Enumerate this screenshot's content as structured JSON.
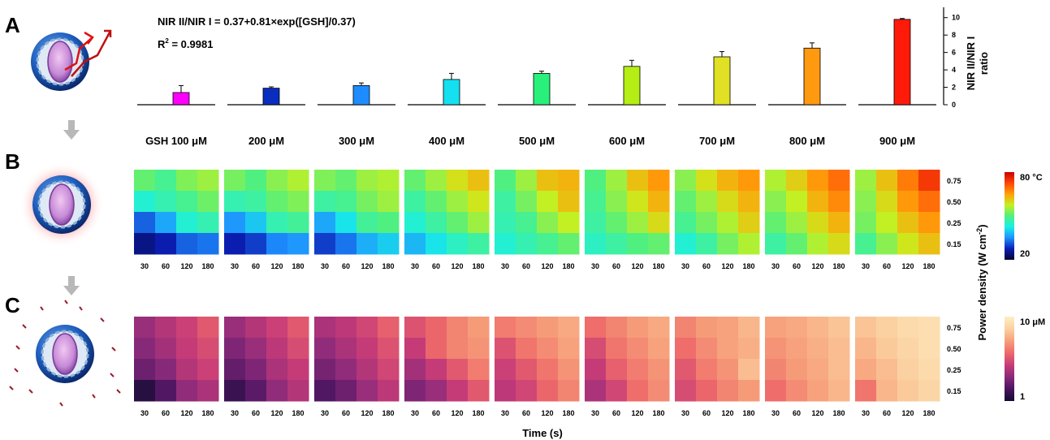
{
  "panels": {
    "a": "A",
    "b": "B",
    "c": "C"
  },
  "chart_data": [
    {
      "type": "bar",
      "panel": "A",
      "equation": "NIR II/NIR I = 0.37+0.81×exp([GSH]/0.37)",
      "r2_prefix": "R",
      "r2_sup": "2",
      "r2_rest": " = 0.9981",
      "ylabel_line1": "NIR II/NIR I",
      "ylabel_line2": "ratio",
      "ylim": [
        0,
        11
      ],
      "yticks": [
        0,
        2,
        4,
        6,
        8,
        10
      ],
      "categories": [
        "GSH 100 μM",
        "200 μM",
        "300 μM",
        "400 μM",
        "500 μM",
        "600 μM",
        "700 μM",
        "800 μM",
        "900 μM"
      ],
      "values": [
        1.4,
        1.9,
        2.2,
        2.9,
        3.6,
        4.4,
        5.5,
        6.5,
        9.8
      ],
      "errors": [
        0.8,
        0.15,
        0.3,
        0.7,
        0.25,
        0.7,
        0.6,
        0.6,
        0.1
      ],
      "colors": [
        "#ff00ff",
        "#0a2dbf",
        "#1e8cff",
        "#14e0f0",
        "#28f07a",
        "#b4ee14",
        "#e0e024",
        "#ff9a10",
        "#ff1a0a"
      ]
    },
    {
      "type": "heatmap",
      "panel": "B",
      "xlabel": "Time (s)",
      "x": [
        "30",
        "60",
        "120",
        "180"
      ],
      "ylabel": "Power density (W cm",
      "ylabel_sup": "-2",
      "ylabel_end": ")",
      "y": [
        "0.75",
        "0.50",
        "0.25",
        "0.15"
      ],
      "colorbar": {
        "max_label": "80 °C",
        "min_label": "20",
        "colors": [
          "#070432",
          "#0a1eb4",
          "#1e90ff",
          "#18f0e6",
          "#50f080",
          "#c8f01e",
          "#ffa00a",
          "#ff4608",
          "#c80000"
        ]
      },
      "series": [
        {
          "name": "GSH 100 μM",
          "values": [
            [
              0.52,
              0.48,
              0.55,
              0.58
            ],
            [
              0.4,
              0.44,
              0.48,
              0.53
            ],
            [
              0.2,
              0.28,
              0.4,
              0.44
            ],
            [
              0.08,
              0.12,
              0.2,
              0.22
            ]
          ]
        },
        {
          "name": "200 μM",
          "values": [
            [
              0.54,
              0.5,
              0.56,
              0.6
            ],
            [
              0.44,
              0.46,
              0.52,
              0.55
            ],
            [
              0.26,
              0.32,
              0.44,
              0.47
            ],
            [
              0.12,
              0.16,
              0.24,
              0.26
            ]
          ]
        },
        {
          "name": "300 μM",
          "values": [
            [
              0.55,
              0.52,
              0.58,
              0.6
            ],
            [
              0.46,
              0.48,
              0.54,
              0.58
            ],
            [
              0.28,
              0.36,
              0.47,
              0.5
            ],
            [
              0.16,
              0.22,
              0.29,
              0.33
            ]
          ]
        },
        {
          "name": "400 μM",
          "values": [
            [
              0.52,
              0.58,
              0.65,
              0.7
            ],
            [
              0.46,
              0.52,
              0.58,
              0.64
            ],
            [
              0.4,
              0.46,
              0.52,
              0.58
            ],
            [
              0.3,
              0.36,
              0.42,
              0.46
            ]
          ]
        },
        {
          "name": "500 μM",
          "values": [
            [
              0.5,
              0.58,
              0.7,
              0.72
            ],
            [
              0.46,
              0.54,
              0.62,
              0.7
            ],
            [
              0.44,
              0.48,
              0.56,
              0.62
            ],
            [
              0.4,
              0.44,
              0.48,
              0.52
            ]
          ]
        },
        {
          "name": "600 μM",
          "values": [
            [
              0.5,
              0.58,
              0.7,
              0.76
            ],
            [
              0.48,
              0.56,
              0.64,
              0.72
            ],
            [
              0.46,
              0.52,
              0.58,
              0.66
            ],
            [
              0.42,
              0.46,
              0.5,
              0.52
            ]
          ]
        },
        {
          "name": "700 μM",
          "values": [
            [
              0.56,
              0.65,
              0.72,
              0.76
            ],
            [
              0.52,
              0.58,
              0.66,
              0.72
            ],
            [
              0.48,
              0.54,
              0.6,
              0.68
            ],
            [
              0.4,
              0.46,
              0.54,
              0.6
            ]
          ]
        },
        {
          "name": "800 μM",
          "values": [
            [
              0.6,
              0.68,
              0.76,
              0.82
            ],
            [
              0.56,
              0.62,
              0.72,
              0.78
            ],
            [
              0.52,
              0.58,
              0.66,
              0.72
            ],
            [
              0.46,
              0.52,
              0.6,
              0.66
            ]
          ]
        },
        {
          "name": "900 μM",
          "values": [
            [
              0.58,
              0.7,
              0.8,
              0.9
            ],
            [
              0.56,
              0.66,
              0.76,
              0.82
            ],
            [
              0.54,
              0.62,
              0.7,
              0.76
            ],
            [
              0.48,
              0.56,
              0.64,
              0.7
            ]
          ]
        }
      ]
    },
    {
      "type": "heatmap",
      "panel": "C",
      "xlabel": "Time (s)",
      "x": [
        "30",
        "60",
        "120",
        "180"
      ],
      "y": [
        "0.75",
        "0.50",
        "0.25",
        "0.15"
      ],
      "colorbar": {
        "max_label": "10 μM",
        "min_label": "1",
        "colors": [
          "#140c30",
          "#4a1460",
          "#8a2a7a",
          "#c83c78",
          "#ee6a6a",
          "#f7a07a",
          "#fbd0a0",
          "#fdf0c4"
        ]
      },
      "series": [
        {
          "name": "GSH 100 μM",
          "values": [
            [
              0.32,
              0.38,
              0.44,
              0.52
            ],
            [
              0.28,
              0.34,
              0.42,
              0.48
            ],
            [
              0.22,
              0.28,
              0.38,
              0.44
            ],
            [
              0.05,
              0.16,
              0.3,
              0.36
            ]
          ]
        },
        {
          "name": "200 μM",
          "values": [
            [
              0.32,
              0.38,
              0.44,
              0.52
            ],
            [
              0.26,
              0.32,
              0.4,
              0.48
            ],
            [
              0.2,
              0.26,
              0.36,
              0.42
            ],
            [
              0.1,
              0.18,
              0.3,
              0.38
            ]
          ]
        },
        {
          "name": "300 μM",
          "values": [
            [
              0.36,
              0.4,
              0.46,
              0.54
            ],
            [
              0.3,
              0.36,
              0.42,
              0.5
            ],
            [
              0.24,
              0.3,
              0.38,
              0.46
            ],
            [
              0.16,
              0.22,
              0.32,
              0.4
            ]
          ]
        },
        {
          "name": "400 μM",
          "values": [
            [
              0.5,
              0.56,
              0.64,
              0.7
            ],
            [
              0.42,
              0.56,
              0.64,
              0.68
            ],
            [
              0.34,
              0.42,
              0.52,
              0.62
            ],
            [
              0.26,
              0.32,
              0.42,
              0.52
            ]
          ]
        },
        {
          "name": "500 μM",
          "values": [
            [
              0.62,
              0.66,
              0.7,
              0.74
            ],
            [
              0.5,
              0.6,
              0.66,
              0.72
            ],
            [
              0.44,
              0.52,
              0.6,
              0.68
            ],
            [
              0.4,
              0.46,
              0.56,
              0.64
            ]
          ]
        },
        {
          "name": "600 μM",
          "values": [
            [
              0.58,
              0.64,
              0.7,
              0.74
            ],
            [
              0.48,
              0.6,
              0.66,
              0.72
            ],
            [
              0.42,
              0.54,
              0.62,
              0.68
            ],
            [
              0.36,
              0.46,
              0.58,
              0.66
            ]
          ]
        },
        {
          "name": "700 μM",
          "values": [
            [
              0.64,
              0.7,
              0.72,
              0.78
            ],
            [
              0.58,
              0.66,
              0.72,
              0.76
            ],
            [
              0.52,
              0.62,
              0.68,
              0.8
            ],
            [
              0.48,
              0.56,
              0.64,
              0.7
            ]
          ]
        },
        {
          "name": "800 μM",
          "values": [
            [
              0.72,
              0.74,
              0.78,
              0.82
            ],
            [
              0.68,
              0.72,
              0.76,
              0.8
            ],
            [
              0.64,
              0.7,
              0.74,
              0.8
            ],
            [
              0.58,
              0.66,
              0.72,
              0.78
            ]
          ]
        },
        {
          "name": "900 μM",
          "values": [
            [
              0.82,
              0.86,
              0.9,
              0.92
            ],
            [
              0.78,
              0.84,
              0.88,
              0.92
            ],
            [
              0.74,
              0.8,
              0.86,
              0.9
            ],
            [
              0.6,
              0.78,
              0.84,
              0.88
            ]
          ]
        }
      ]
    }
  ]
}
